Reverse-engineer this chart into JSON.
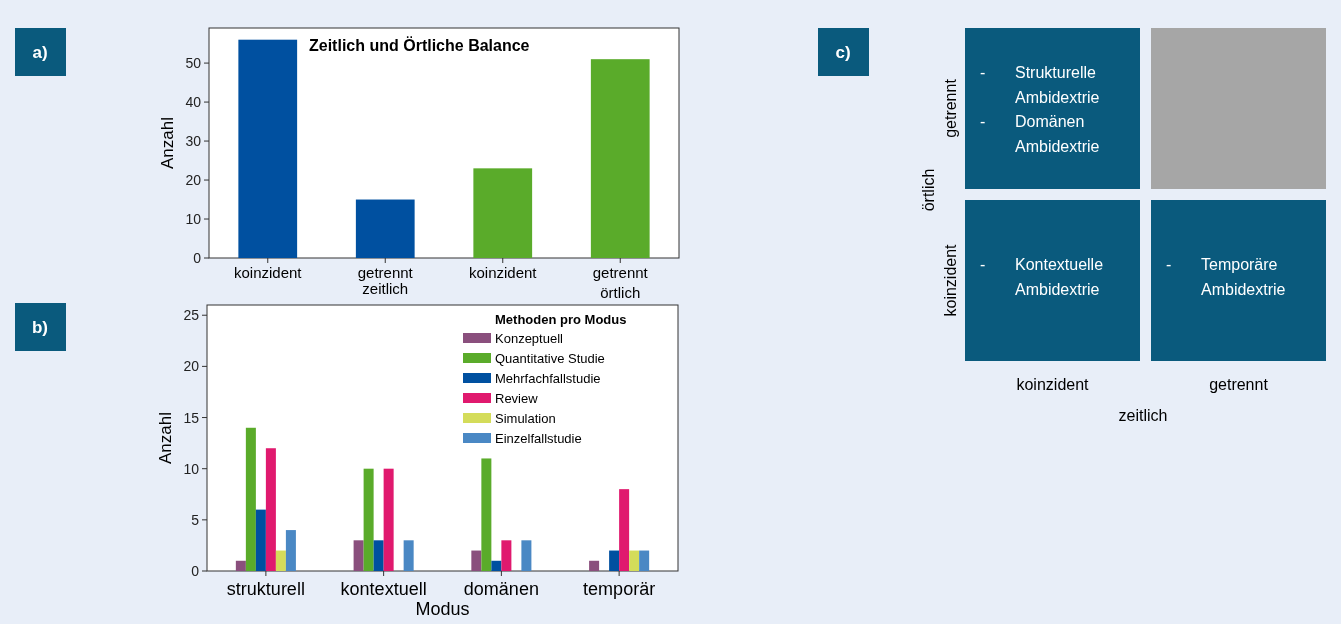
{
  "chart_data": [
    {
      "type": "bar",
      "title": "Zeitlich und Örtliche Balance",
      "ylabel": "Anzahl",
      "categories": [
        "koinzident",
        "getrennt",
        "koinzident",
        "getrennt"
      ],
      "values": [
        56,
        15,
        23,
        51
      ],
      "colors": [
        "#0050a0",
        "#0050a0",
        "#5aab2a",
        "#5aab2a"
      ],
      "ylim": [
        0,
        59
      ],
      "yticks": [
        0,
        10,
        20,
        30,
        40,
        50
      ],
      "grid": false,
      "legend": false,
      "annotations": [
        "a)",
        "zeitlich",
        "örtlich"
      ]
    },
    {
      "type": "bar",
      "xlabel": "Modus",
      "ylabel": "Anzahl",
      "legend_title": "Methoden pro Modus",
      "legend": "top right",
      "categories": [
        "strukturell",
        "kontextuell",
        "domänen",
        "temporär"
      ],
      "ylim": [
        0,
        26
      ],
      "yticks": [
        0,
        5,
        10,
        15,
        20,
        25
      ],
      "grid": false,
      "annotations": [
        "b)"
      ],
      "series": [
        {
          "name": "Konzeptuell",
          "color": "#8a4f7d",
          "values": [
            1,
            3,
            2,
            1
          ]
        },
        {
          "name": "Quantitative Studie",
          "color": "#5aab2a",
          "values": [
            14,
            10,
            11,
            0
          ]
        },
        {
          "name": "Mehrfachfallstudie",
          "color": "#0050a0",
          "values": [
            6,
            3,
            1,
            2
          ]
        },
        {
          "name": "Review",
          "color": "#e0196e",
          "values": [
            12,
            10,
            3,
            8
          ]
        },
        {
          "name": "Simulation",
          "color": "#d4dc5a",
          "values": [
            2,
            0,
            0,
            2
          ]
        },
        {
          "name": "Einzelfallstudie",
          "color": "#4a88c4",
          "values": [
            4,
            3,
            3,
            2
          ]
        }
      ]
    },
    {
      "type": "other",
      "xlabel": "zeitlich",
      "ylabel": "örtlich",
      "categories": [
        "koinzident",
        "getrennt"
      ],
      "y_categories": [
        "getrennt",
        "koinzident"
      ],
      "cell_labels": [
        [
          [
            "- Strukturelle Ambidextrie",
            "- Domänen Ambidextrie"
          ],
          null
        ],
        [
          [
            "- Kontextuelle Ambidextrie"
          ],
          [
            "- Temporäre Ambidextrie"
          ]
        ]
      ],
      "annotations": [
        "c)"
      ]
    }
  ]
}
